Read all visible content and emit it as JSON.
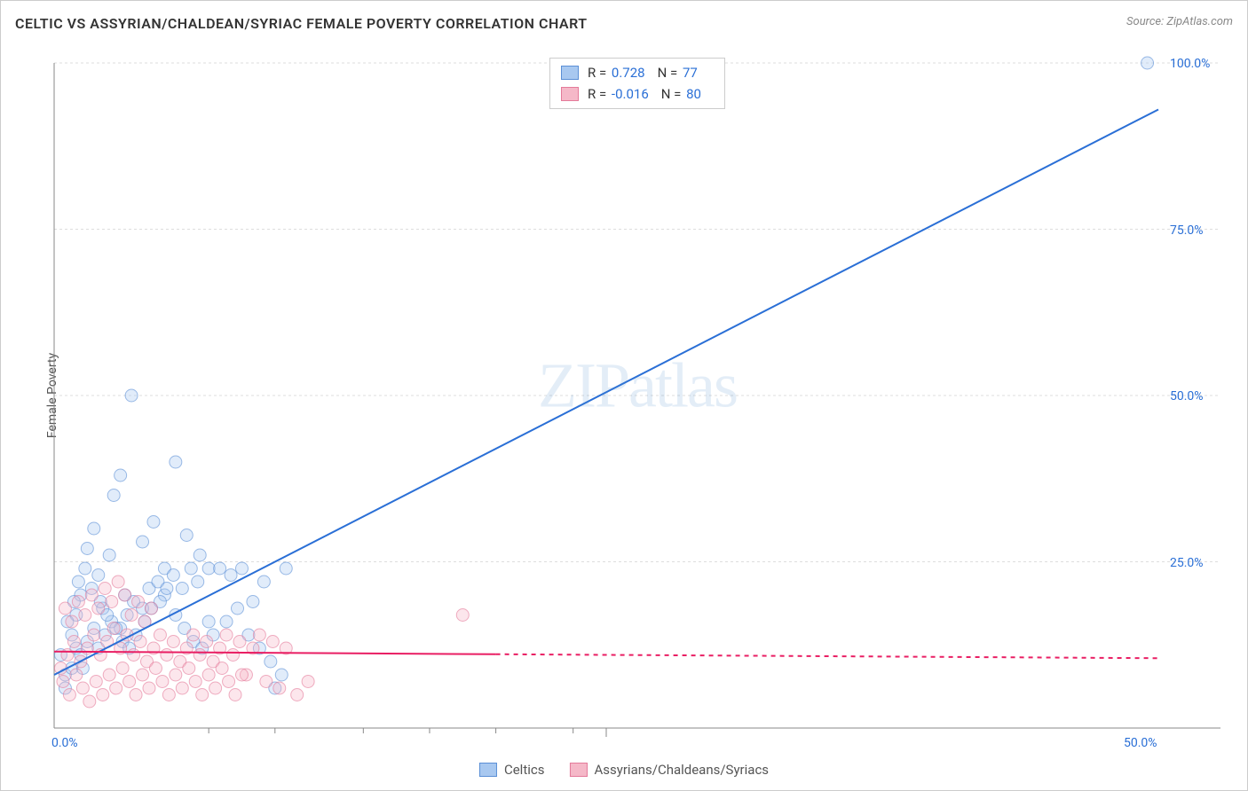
{
  "title": "CELTIC VS ASSYRIAN/CHALDEAN/SYRIAC FEMALE POVERTY CORRELATION CHART",
  "source": "Source: ZipAtlas.com",
  "ylabel": "Female Poverty",
  "watermark": "ZIPatlas",
  "chart": {
    "type": "scatter",
    "background_color": "#ffffff",
    "grid_color": "#dddddd",
    "axis_color": "#888888",
    "xlim": [
      0,
      50
    ],
    "ylim": [
      0,
      100
    ],
    "xticks": [
      0,
      25,
      50
    ],
    "xtick_labels": [
      "0.0%",
      "",
      "50.0%"
    ],
    "xtick_minor": [
      7,
      10,
      14,
      17,
      20,
      23.5
    ],
    "yticks": [
      25,
      50,
      75,
      100
    ],
    "ytick_labels": [
      "25.0%",
      "50.0%",
      "75.0%",
      "100.0%"
    ],
    "xlabel_color": "#2a6fd6",
    "ylabel_color": "#2a6fd6",
    "point_radius": 7,
    "point_opacity": 0.35,
    "series": [
      {
        "name": "Celtics",
        "fill_color": "#a8c8f0",
        "stroke_color": "#5b8fd6",
        "line_color": "#2a6fd6",
        "line_width": 2,
        "regression": {
          "x1": 0,
          "y1": 8,
          "x2": 50,
          "y2": 93,
          "dashed_from_x": null
        },
        "stats": {
          "r": "0.728",
          "n": "77"
        },
        "points": [
          [
            0.3,
            11
          ],
          [
            0.5,
            8
          ],
          [
            0.8,
            14
          ],
          [
            1.0,
            17
          ],
          [
            1.2,
            20
          ],
          [
            1.0,
            12
          ],
          [
            1.5,
            27
          ],
          [
            1.8,
            30
          ],
          [
            2.0,
            23
          ],
          [
            2.2,
            18
          ],
          [
            2.5,
            26
          ],
          [
            2.7,
            35
          ],
          [
            3.0,
            38
          ],
          [
            3.2,
            20
          ],
          [
            3.5,
            50
          ],
          [
            4.0,
            28
          ],
          [
            4.5,
            31
          ],
          [
            5.0,
            24
          ],
          [
            5.5,
            40
          ],
          [
            6.0,
            29
          ],
          [
            6.5,
            22
          ],
          [
            7.0,
            16
          ],
          [
            0.5,
            6
          ],
          [
            0.8,
            9
          ],
          [
            1.2,
            11
          ],
          [
            1.5,
            13
          ],
          [
            1.8,
            15
          ],
          [
            2.0,
            12
          ],
          [
            2.3,
            14
          ],
          [
            2.6,
            16
          ],
          [
            3.0,
            15
          ],
          [
            3.3,
            17
          ],
          [
            3.6,
            19
          ],
          [
            4.0,
            18
          ],
          [
            4.3,
            21
          ],
          [
            4.7,
            22
          ],
          [
            5.0,
            20
          ],
          [
            5.4,
            23
          ],
          [
            5.8,
            21
          ],
          [
            6.2,
            24
          ],
          [
            6.6,
            26
          ],
          [
            7.0,
            24
          ],
          [
            7.5,
            24
          ],
          [
            8.0,
            23
          ],
          [
            8.5,
            24
          ],
          [
            9.0,
            19
          ],
          [
            9.5,
            22
          ],
          [
            10.0,
            6
          ],
          [
            10.5,
            24
          ],
          [
            49.5,
            100
          ],
          [
            0.6,
            16
          ],
          [
            0.9,
            19
          ],
          [
            1.1,
            22
          ],
          [
            1.4,
            24
          ],
          [
            1.7,
            21
          ],
          [
            2.1,
            19
          ],
          [
            2.4,
            17
          ],
          [
            2.8,
            15
          ],
          [
            3.1,
            13
          ],
          [
            3.4,
            12
          ],
          [
            3.7,
            14
          ],
          [
            4.1,
            16
          ],
          [
            4.4,
            18
          ],
          [
            4.8,
            19
          ],
          [
            5.1,
            21
          ],
          [
            5.5,
            17
          ],
          [
            5.9,
            15
          ],
          [
            6.3,
            13
          ],
          [
            6.7,
            12
          ],
          [
            7.2,
            14
          ],
          [
            7.8,
            16
          ],
          [
            8.3,
            18
          ],
          [
            8.8,
            14
          ],
          [
            9.3,
            12
          ],
          [
            9.8,
            10
          ],
          [
            10.3,
            8
          ],
          [
            1.3,
            9
          ]
        ]
      },
      {
        "name": "Assyrians/Chaldeans/Syriacs",
        "fill_color": "#f5b8c8",
        "stroke_color": "#e47a9a",
        "line_color": "#e91e63",
        "line_width": 2,
        "regression": {
          "x1": 0,
          "y1": 11.5,
          "x2": 50,
          "y2": 10.5,
          "dashed_from_x": 20
        },
        "stats": {
          "r": "-0.016",
          "n": "80"
        },
        "points": [
          [
            0.3,
            9
          ],
          [
            0.6,
            11
          ],
          [
            0.9,
            13
          ],
          [
            1.2,
            10
          ],
          [
            1.5,
            12
          ],
          [
            1.8,
            14
          ],
          [
            2.1,
            11
          ],
          [
            2.4,
            13
          ],
          [
            2.7,
            15
          ],
          [
            3.0,
            12
          ],
          [
            3.3,
            14
          ],
          [
            3.6,
            11
          ],
          [
            3.9,
            13
          ],
          [
            4.2,
            10
          ],
          [
            4.5,
            12
          ],
          [
            4.8,
            14
          ],
          [
            5.1,
            11
          ],
          [
            5.4,
            13
          ],
          [
            5.7,
            10
          ],
          [
            6.0,
            12
          ],
          [
            6.3,
            14
          ],
          [
            6.6,
            11
          ],
          [
            6.9,
            13
          ],
          [
            7.2,
            10
          ],
          [
            7.5,
            12
          ],
          [
            7.8,
            14
          ],
          [
            8.1,
            11
          ],
          [
            8.4,
            13
          ],
          [
            8.7,
            8
          ],
          [
            9.0,
            12
          ],
          [
            9.3,
            14
          ],
          [
            9.6,
            7
          ],
          [
            9.9,
            13
          ],
          [
            10.2,
            6
          ],
          [
            10.5,
            12
          ],
          [
            0.4,
            7
          ],
          [
            0.7,
            5
          ],
          [
            1.0,
            8
          ],
          [
            1.3,
            6
          ],
          [
            1.6,
            4
          ],
          [
            1.9,
            7
          ],
          [
            2.2,
            5
          ],
          [
            2.5,
            8
          ],
          [
            2.8,
            6
          ],
          [
            3.1,
            9
          ],
          [
            3.4,
            7
          ],
          [
            3.7,
            5
          ],
          [
            4.0,
            8
          ],
          [
            4.3,
            6
          ],
          [
            4.6,
            9
          ],
          [
            4.9,
            7
          ],
          [
            5.2,
            5
          ],
          [
            5.5,
            8
          ],
          [
            5.8,
            6
          ],
          [
            6.1,
            9
          ],
          [
            6.4,
            7
          ],
          [
            6.7,
            5
          ],
          [
            7.0,
            8
          ],
          [
            7.3,
            6
          ],
          [
            7.6,
            9
          ],
          [
            7.9,
            7
          ],
          [
            8.2,
            5
          ],
          [
            8.5,
            8
          ],
          [
            0.5,
            18
          ],
          [
            0.8,
            16
          ],
          [
            1.1,
            19
          ],
          [
            1.4,
            17
          ],
          [
            1.7,
            20
          ],
          [
            2.0,
            18
          ],
          [
            2.3,
            21
          ],
          [
            2.6,
            19
          ],
          [
            2.9,
            22
          ],
          [
            3.2,
            20
          ],
          [
            3.5,
            17
          ],
          [
            3.8,
            19
          ],
          [
            4.1,
            16
          ],
          [
            4.4,
            18
          ],
          [
            18.5,
            17
          ],
          [
            11.0,
            5
          ],
          [
            11.5,
            7
          ]
        ]
      }
    ]
  },
  "legend_top_labels": {
    "r_prefix": "R = ",
    "n_prefix": "N = "
  },
  "legend_bottom": [
    {
      "label": "Celtics",
      "fill": "#a8c8f0",
      "stroke": "#5b8fd6"
    },
    {
      "label": "Assyrians/Chaldeans/Syriacs",
      "fill": "#f5b8c8",
      "stroke": "#e47a9a"
    }
  ]
}
